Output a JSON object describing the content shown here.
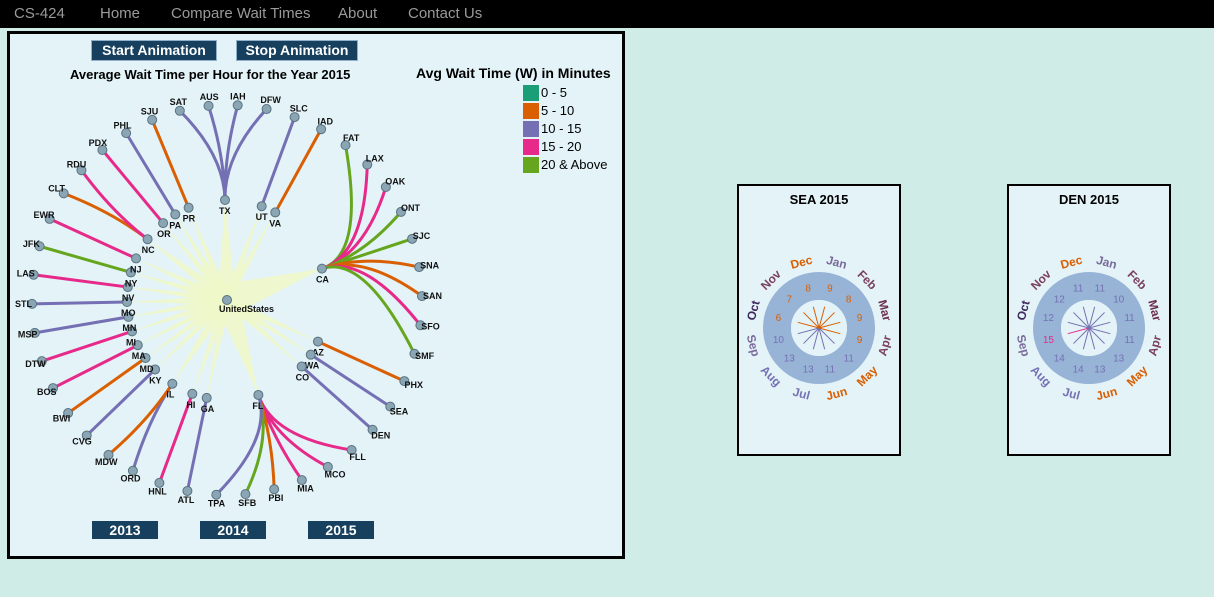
{
  "nav": {
    "brand": "CS-424",
    "items": [
      "Home",
      "Compare Wait Times",
      "About",
      "Contact Us"
    ]
  },
  "controls": {
    "start": "Start Animation",
    "stop": "Stop Animation",
    "years": [
      "2013",
      "2014",
      "2015"
    ]
  },
  "chart": {
    "title": "Average Wait Time per Hour for the Year 2015",
    "center": "UnitedStates",
    "legend_title": "Avg Wait Time (W) in Minutes",
    "legend": [
      {
        "label": "0 - 5",
        "color": "#1b9e77"
      },
      {
        "label": "5 - 10",
        "color": "#d95f02"
      },
      {
        "label": "10 - 15",
        "color": "#7570b3"
      },
      {
        "label": "15 - 20",
        "color": "#e7298a"
      },
      {
        "label": "20 & Above",
        "color": "#66a61e"
      }
    ],
    "states": [
      {
        "name": "TX",
        "airports": [
          {
            "name": "SAT",
            "c": 2
          },
          {
            "name": "AUS",
            "c": 2
          },
          {
            "name": "IAH",
            "c": 2
          },
          {
            "name": "DFW",
            "c": 2
          }
        ]
      },
      {
        "name": "UT",
        "airports": [
          {
            "name": "SLC",
            "c": 2
          }
        ]
      },
      {
        "name": "VA",
        "airports": [
          {
            "name": "IAD",
            "c": 1
          }
        ]
      },
      {
        "name": "CA",
        "airports": [
          {
            "name": "FAT",
            "c": 4
          },
          {
            "name": "LAX",
            "c": 3
          },
          {
            "name": "OAK",
            "c": 3
          },
          {
            "name": "ONT",
            "c": 4
          },
          {
            "name": "SJC",
            "c": 4
          },
          {
            "name": "SNA",
            "c": 1
          },
          {
            "name": "SAN",
            "c": 1
          },
          {
            "name": "SFO",
            "c": 3
          },
          {
            "name": "SMF",
            "c": 4
          }
        ]
      },
      {
        "name": "AZ",
        "airports": [
          {
            "name": "PHX",
            "c": 1
          }
        ]
      },
      {
        "name": "WA",
        "airports": [
          {
            "name": "SEA",
            "c": 2
          }
        ]
      },
      {
        "name": "CO",
        "airports": [
          {
            "name": "DEN",
            "c": 2
          }
        ]
      },
      {
        "name": "FL",
        "airports": [
          {
            "name": "FLL",
            "c": 3
          },
          {
            "name": "MCO",
            "c": 3
          },
          {
            "name": "MIA",
            "c": 3
          },
          {
            "name": "PBI",
            "c": 1
          },
          {
            "name": "SFB",
            "c": 4
          },
          {
            "name": "TPA",
            "c": 2
          }
        ]
      },
      {
        "name": "GA",
        "airports": [
          {
            "name": "ATL",
            "c": 2
          }
        ]
      },
      {
        "name": "HI",
        "airports": [
          {
            "name": "HNL",
            "c": 3
          }
        ]
      },
      {
        "name": "IL",
        "airports": [
          {
            "name": "ORD",
            "c": 2
          },
          {
            "name": "MDW",
            "c": 1
          }
        ]
      },
      {
        "name": "KY",
        "airports": [
          {
            "name": "CVG",
            "c": 2
          }
        ]
      },
      {
        "name": "MD",
        "airports": [
          {
            "name": "BWI",
            "c": 1
          }
        ]
      },
      {
        "name": "MA",
        "airports": [
          {
            "name": "BOS",
            "c": 3
          }
        ]
      },
      {
        "name": "MI",
        "airports": [
          {
            "name": "DTW",
            "c": 3
          }
        ]
      },
      {
        "name": "MN",
        "airports": [
          {
            "name": "MSP",
            "c": 2
          }
        ]
      },
      {
        "name": "MO",
        "airports": [
          {
            "name": "STL",
            "c": 2
          }
        ]
      },
      {
        "name": "NV",
        "airports": [
          {
            "name": "LAS",
            "c": 3
          }
        ]
      },
      {
        "name": "NY",
        "airports": [
          {
            "name": "JFK",
            "c": 4
          }
        ]
      },
      {
        "name": "NJ",
        "airports": [
          {
            "name": "EWR",
            "c": 3
          }
        ]
      },
      {
        "name": "NC",
        "airports": [
          {
            "name": "CLT",
            "c": 1
          },
          {
            "name": "RDU",
            "c": 3
          }
        ]
      },
      {
        "name": "OR",
        "airports": [
          {
            "name": "PDX",
            "c": 3
          }
        ]
      },
      {
        "name": "PA",
        "airports": [
          {
            "name": "PHL",
            "c": 2
          }
        ]
      },
      {
        "name": "PR",
        "airports": [
          {
            "name": "SJU",
            "c": 1
          }
        ]
      }
    ]
  },
  "months": [
    "Jan",
    "Feb",
    "Mar",
    "Apr",
    "May",
    "Jun",
    "Jul",
    "Aug",
    "Sep",
    "Oct",
    "Nov",
    "Dec"
  ],
  "month_colors": [
    "#7a6a9a",
    "#7a3f5e",
    "#6a2e4e",
    "#7a3f5e",
    "#d95f02",
    "#d95f02",
    "#7570b3",
    "#7570b3",
    "#7a6a9a",
    "#3d2a5e",
    "#7a3f5e",
    "#d95f02"
  ],
  "minis": [
    {
      "title": "SEA 2015",
      "values": [
        9,
        8,
        9,
        9,
        11,
        11,
        13,
        13,
        10,
        6,
        7,
        8
      ]
    },
    {
      "title": "DEN 2015",
      "values": [
        11,
        10,
        11,
        11,
        13,
        13,
        14,
        14,
        15,
        12,
        12,
        11
      ]
    }
  ]
}
